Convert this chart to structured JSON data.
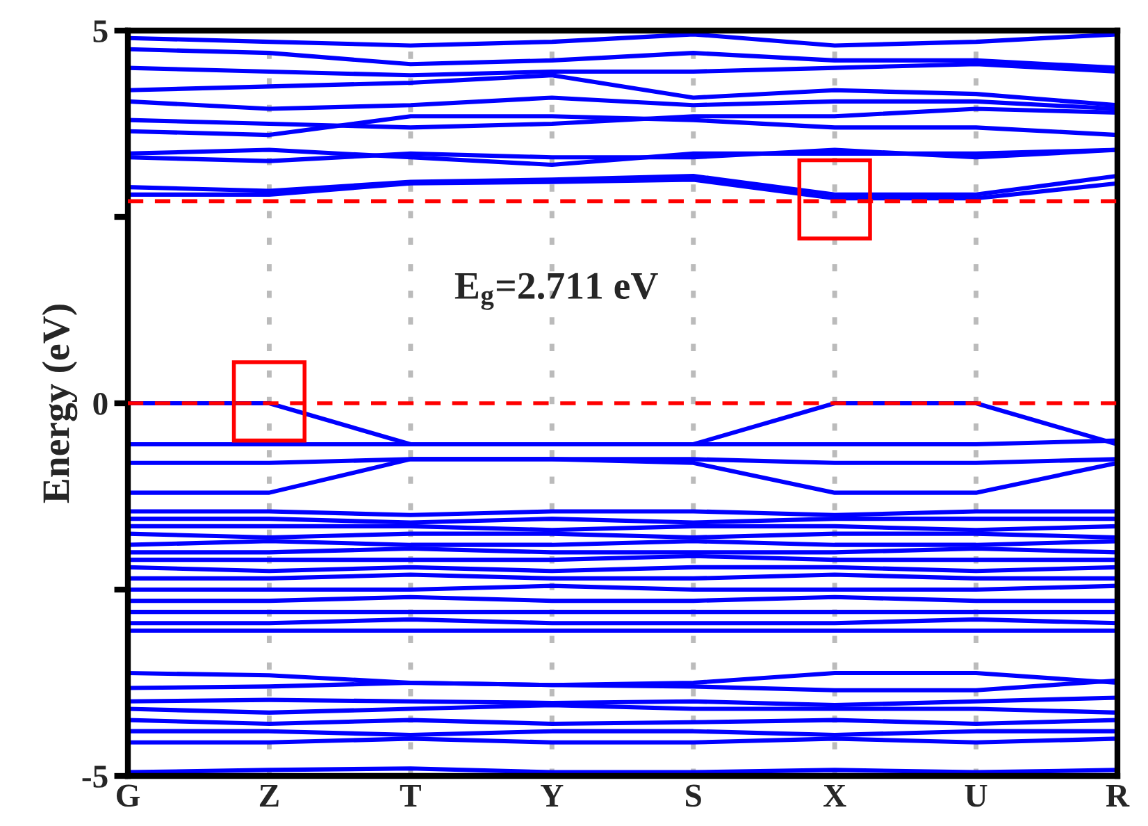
{
  "chart_data": {
    "type": "line",
    "ylabel": "Energy (eV)",
    "annotations": [
      "E$_{g}$=2.711 eV"
    ],
    "categories": [
      "G",
      "Z",
      "T",
      "Y",
      "S",
      "X",
      "U",
      "R"
    ],
    "ylim": [
      -5,
      5
    ],
    "yticks": [
      -5,
      {
        "value": -2.5,
        "label": null
      },
      0,
      {
        "value": 2.5,
        "label": null
      },
      5
    ],
    "grid": "x",
    "legend": false,
    "marker": "none",
    "line_style": "solid",
    "ref_lines": [
      {
        "axis": "y",
        "value": 0,
        "color": "#ff0000",
        "line_style": "dashed"
      },
      {
        "axis": "y",
        "value": 2.711,
        "color": "#ff0000",
        "line_style": "dashed"
      }
    ],
    "series": [
      {
        "color": "#0000ff",
        "values": [
          2.8,
          2.8,
          2.95,
          2.97,
          3.0,
          2.75,
          2.75,
          2.95
        ]
      },
      {
        "color": "#0000ff",
        "values": [
          2.9,
          2.85,
          2.97,
          3.0,
          3.05,
          2.8,
          2.8,
          3.05
        ]
      },
      {
        "color": "#0000ff",
        "values": [
          3.3,
          3.25,
          3.35,
          3.3,
          3.3,
          3.4,
          3.3,
          3.4
        ]
      },
      {
        "color": "#0000ff",
        "values": [
          3.35,
          3.4,
          3.3,
          3.2,
          3.35,
          3.35,
          3.35,
          3.4
        ]
      },
      {
        "color": "#0000ff",
        "values": [
          3.65,
          3.6,
          3.85,
          3.85,
          3.8,
          3.7,
          3.7,
          3.6
        ]
      },
      {
        "color": "#0000ff",
        "values": [
          3.8,
          3.75,
          3.7,
          3.75,
          3.85,
          3.85,
          3.95,
          3.9
        ]
      },
      {
        "color": "#0000ff",
        "values": [
          4.05,
          3.95,
          4.0,
          4.1,
          4.0,
          4.05,
          4.05,
          3.95
        ]
      },
      {
        "color": "#0000ff",
        "values": [
          4.2,
          4.25,
          4.3,
          4.4,
          4.1,
          4.2,
          4.15,
          4.0
        ]
      },
      {
        "color": "#0000ff",
        "values": [
          4.5,
          4.45,
          4.4,
          4.45,
          4.45,
          4.5,
          4.55,
          4.45
        ]
      },
      {
        "color": "#0000ff",
        "values": [
          4.75,
          4.7,
          4.55,
          4.6,
          4.7,
          4.6,
          4.6,
          4.5
        ]
      },
      {
        "color": "#0000ff",
        "values": [
          4.9,
          4.85,
          4.8,
          4.85,
          4.95,
          4.8,
          4.85,
          4.95
        ]
      },
      {
        "color": "#0000ff",
        "values": [
          0.0,
          0.0,
          -0.55,
          -0.55,
          -0.55,
          0.0,
          0.0,
          -0.55
        ]
      },
      {
        "color": "#0000ff",
        "values": [
          -0.55,
          -0.55,
          -0.55,
          -0.55,
          -0.55,
          -0.55,
          -0.55,
          -0.5
        ]
      },
      {
        "color": "#0000ff",
        "values": [
          -0.8,
          -0.8,
          -0.75,
          -0.75,
          -0.75,
          -0.8,
          -0.8,
          -0.75
        ]
      },
      {
        "color": "#0000ff",
        "values": [
          -1.2,
          -1.2,
          -0.75,
          -0.75,
          -0.8,
          -1.2,
          -1.2,
          -0.8
        ]
      },
      {
        "color": "#0000ff",
        "values": [
          -1.45,
          -1.45,
          -1.5,
          -1.45,
          -1.45,
          -1.5,
          -1.45,
          -1.45
        ]
      },
      {
        "color": "#0000ff",
        "values": [
          -1.55,
          -1.55,
          -1.6,
          -1.55,
          -1.6,
          -1.55,
          -1.55,
          -1.55
        ]
      },
      {
        "color": "#0000ff",
        "values": [
          -1.65,
          -1.65,
          -1.65,
          -1.7,
          -1.65,
          -1.65,
          -1.7,
          -1.65
        ]
      },
      {
        "color": "#0000ff",
        "values": [
          -1.75,
          -1.8,
          -1.75,
          -1.75,
          -1.8,
          -1.75,
          -1.75,
          -1.8
        ]
      },
      {
        "color": "#0000ff",
        "values": [
          -1.9,
          -1.85,
          -1.9,
          -1.9,
          -1.85,
          -1.9,
          -1.9,
          -1.85
        ]
      },
      {
        "color": "#0000ff",
        "values": [
          -2.0,
          -2.0,
          -1.95,
          -2.0,
          -2.0,
          -2.0,
          -1.95,
          -2.0
        ]
      },
      {
        "color": "#0000ff",
        "values": [
          -2.1,
          -2.1,
          -2.1,
          -2.1,
          -2.05,
          -2.1,
          -2.1,
          -2.1
        ]
      },
      {
        "color": "#0000ff",
        "values": [
          -2.2,
          -2.25,
          -2.2,
          -2.25,
          -2.2,
          -2.2,
          -2.25,
          -2.2
        ]
      },
      {
        "color": "#0000ff",
        "values": [
          -2.35,
          -2.35,
          -2.3,
          -2.35,
          -2.35,
          -2.3,
          -2.35,
          -2.35
        ]
      },
      {
        "color": "#0000ff",
        "values": [
          -2.5,
          -2.5,
          -2.5,
          -2.45,
          -2.5,
          -2.5,
          -2.5,
          -2.45
        ]
      },
      {
        "color": "#0000ff",
        "values": [
          -2.65,
          -2.65,
          -2.6,
          -2.65,
          -2.65,
          -2.6,
          -2.65,
          -2.65
        ]
      },
      {
        "color": "#0000ff",
        "values": [
          -2.8,
          -2.8,
          -2.8,
          -2.8,
          -2.8,
          -2.8,
          -2.8,
          -2.8
        ]
      },
      {
        "color": "#0000ff",
        "values": [
          -2.95,
          -2.95,
          -2.9,
          -2.95,
          -2.95,
          -2.95,
          -2.9,
          -2.95
        ]
      },
      {
        "color": "#0000ff",
        "values": [
          -3.05,
          -3.05,
          -3.05,
          -3.05,
          -3.05,
          -3.05,
          -3.05,
          -3.05
        ]
      },
      {
        "color": "#0000ff",
        "values": [
          -3.62,
          -3.65,
          -3.75,
          -3.78,
          -3.75,
          -3.62,
          -3.62,
          -3.75
        ]
      },
      {
        "color": "#0000ff",
        "values": [
          -3.82,
          -3.8,
          -3.75,
          -3.78,
          -3.8,
          -3.85,
          -3.85,
          -3.72
        ]
      },
      {
        "color": "#0000ff",
        "values": [
          -4.0,
          -3.98,
          -4.0,
          -4.02,
          -4.0,
          -4.05,
          -4.0,
          -3.95
        ]
      },
      {
        "color": "#0000ff",
        "values": [
          -4.1,
          -4.15,
          -4.1,
          -4.05,
          -4.1,
          -4.1,
          -4.1,
          -4.15
        ]
      },
      {
        "color": "#0000ff",
        "values": [
          -4.25,
          -4.3,
          -4.25,
          -4.3,
          -4.28,
          -4.25,
          -4.3,
          -4.25
        ]
      },
      {
        "color": "#0000ff",
        "values": [
          -4.4,
          -4.4,
          -4.45,
          -4.4,
          -4.4,
          -4.45,
          -4.4,
          -4.4
        ]
      },
      {
        "color": "#0000ff",
        "values": [
          -4.55,
          -4.55,
          -4.5,
          -4.55,
          -4.55,
          -4.5,
          -4.55,
          -4.5
        ]
      },
      {
        "color": "#0000ff",
        "values": [
          -4.95,
          -4.92,
          -4.9,
          -4.95,
          -4.95,
          -4.92,
          -4.95,
          -4.92
        ]
      }
    ]
  }
}
